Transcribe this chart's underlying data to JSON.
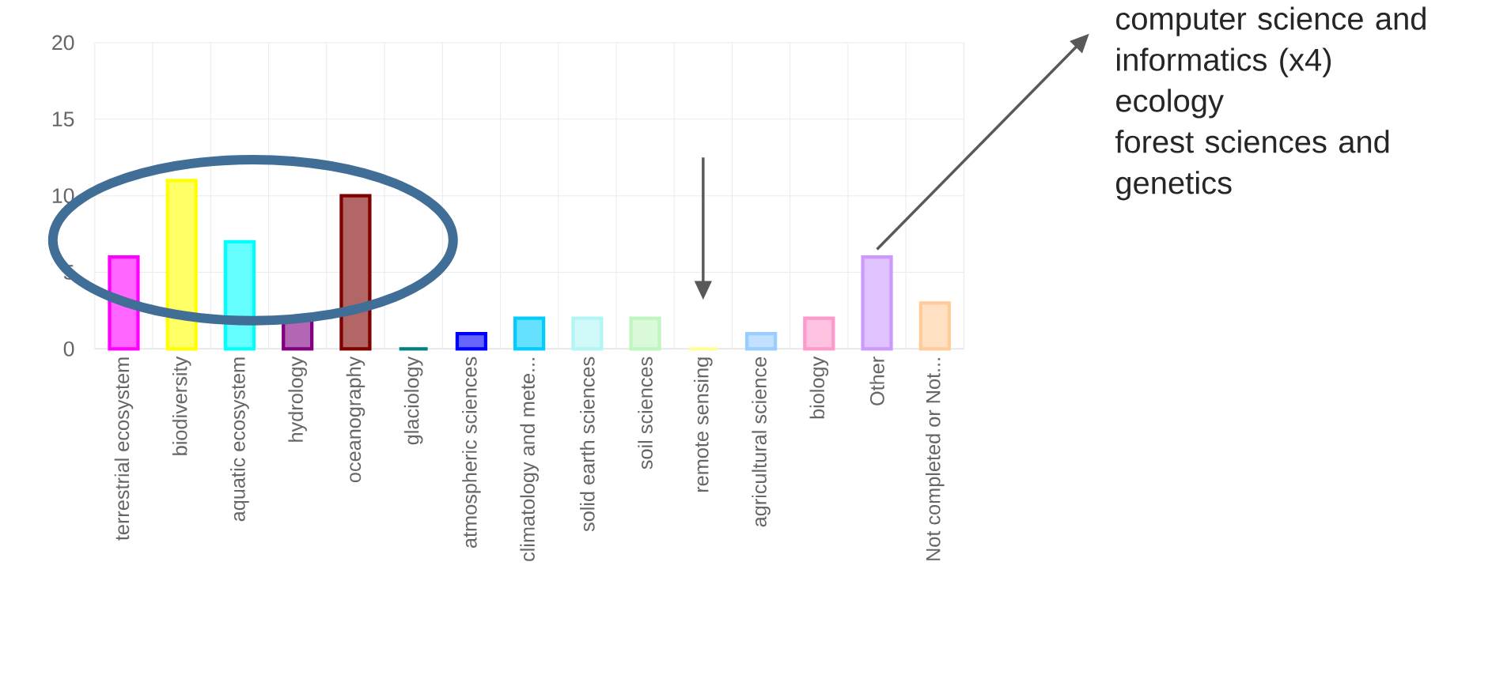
{
  "chart_data": {
    "type": "bar",
    "categories": [
      "terrestrial ecosystem",
      "biodiversity",
      "aquatic ecosystem",
      "hydrology",
      "oceanography",
      "glaciology",
      "atmospheric sciences",
      "climatology and mete...",
      "solid earth sciences",
      "soil sciences",
      "remote sensing",
      "agricultural science",
      "biology",
      "Other",
      "Not completed or Not..."
    ],
    "values": [
      6,
      11,
      7,
      2,
      10,
      0,
      1,
      2,
      2,
      2,
      0,
      1,
      2,
      6,
      3
    ],
    "colors": [
      "#ff00ff",
      "#ffff00",
      "#00ffff",
      "#800080",
      "#800000",
      "#008080",
      "#0000ff",
      "#00ccff",
      "#b3f5f5",
      "#c0f5c0",
      "#ffff99",
      "#99ccff",
      "#ff99cc",
      "#cc99ff",
      "#ffcc99"
    ],
    "ylim": [
      0,
      20
    ],
    "yticks": [
      0,
      5,
      10,
      15,
      20
    ],
    "grid": true,
    "annotations": [
      "computer science and informatics (x4)",
      "ecology",
      "forest sciences and genetics"
    ]
  }
}
